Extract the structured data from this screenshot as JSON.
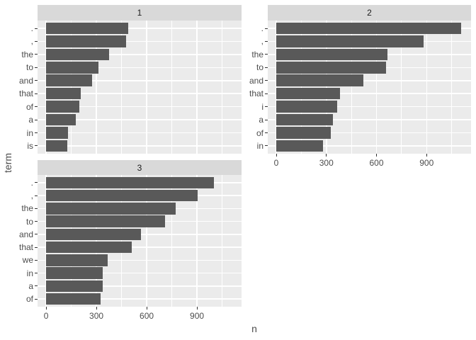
{
  "chart": {
    "y_axis_title": "term",
    "x_axis_title": "n",
    "colors": {
      "background": "#FFFFFF",
      "bar": "#595959",
      "panel_bg": "#EBEBEB",
      "strip_bg": "#D9D9D9",
      "grid": "#FFFFFF",
      "axis_text": "#4D4D4D",
      "strip_text": "#1A1A1A",
      "tick": "#333333"
    }
  },
  "chart_data": {
    "type": "bar",
    "orientation": "horizontal",
    "title": "",
    "xlabel": "n",
    "ylabel": "term",
    "legend": "none",
    "grid": "on",
    "x_ticks": [
      0,
      300,
      600,
      900
    ],
    "x_minor_ticks": [
      150,
      450,
      750,
      1050
    ],
    "x_axis_range": [
      -51,
      1166
    ],
    "facets": [
      {
        "label": "1",
        "show_x_axis": false,
        "categories": [
          ".",
          ",",
          "the",
          "to",
          "and",
          "that",
          "of",
          "a",
          "in",
          "is"
        ],
        "values": [
          490,
          478,
          376,
          313,
          273,
          206,
          198,
          178,
          132,
          126
        ]
      },
      {
        "label": "2",
        "show_x_axis": true,
        "categories": [
          ".",
          ",",
          "the",
          "to",
          "and",
          "that",
          "i",
          "a",
          "of",
          "in"
        ],
        "values": [
          1107,
          883,
          664,
          657,
          523,
          382,
          364,
          340,
          326,
          281
        ]
      },
      {
        "label": "3",
        "show_x_axis": true,
        "categories": [
          ".",
          ",",
          "the",
          "to",
          "and",
          "that",
          "we",
          "in",
          "a",
          "of"
        ],
        "values": [
          1000,
          905,
          775,
          708,
          568,
          512,
          369,
          339,
          337,
          327
        ]
      }
    ]
  }
}
